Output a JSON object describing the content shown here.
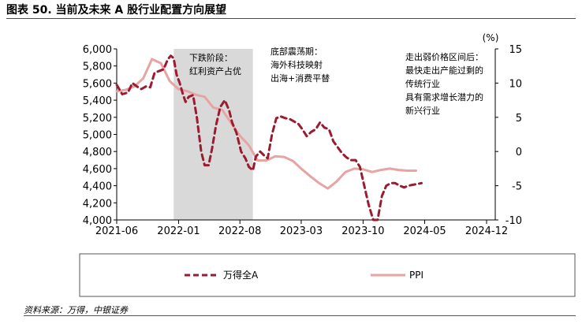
{
  "header": {
    "title": "图表 50. 当前及未来 A 股行业配置方向展望"
  },
  "footer": {
    "source": "资料来源：万得，中银证券"
  },
  "chart_data": {
    "type": "line",
    "title": "",
    "x_tick_labels": [
      "2021-06",
      "2022-01",
      "2022-08",
      "2023-03",
      "2023-10",
      "2024-05",
      "2024-12"
    ],
    "x_range": [
      "2021-06-01",
      "2024-12-31"
    ],
    "y_left": {
      "label": "",
      "ylim": [
        4000,
        6000
      ],
      "ticks": [
        "6,000",
        "5,800",
        "5,600",
        "5,400",
        "5,200",
        "5,000",
        "4,800",
        "4,600",
        "4,400",
        "4,200",
        "4,000"
      ]
    },
    "y_right": {
      "label": "(%)",
      "ylim": [
        -10,
        15
      ],
      "ticks": [
        "15",
        "10",
        "5",
        "0",
        "-5",
        "-10"
      ]
    },
    "shaded_period": {
      "start": "2021-12-15",
      "end": "2022-09-15",
      "color": "#d9d9d9"
    },
    "annotations": [
      {
        "lines": [
          "下跌阶段：",
          "红利资产占优"
        ]
      },
      {
        "lines": [
          "底部震荡期：",
          "海外科技映射",
          "出海+消费平替"
        ]
      },
      {
        "lines": [
          "走出弱价格区间后：",
          "最快走出产能过剩的",
          "传统行业",
          "具有需求增长潜力的",
          "新兴行业"
        ]
      }
    ],
    "series": [
      {
        "name": "万得全A",
        "axis": "left",
        "style": "dashed",
        "color": "#9b1b30",
        "x": [
          "2021-06-01",
          "2021-06-20",
          "2021-07-10",
          "2021-07-25",
          "2021-08-10",
          "2021-08-25",
          "2021-09-10",
          "2021-09-25",
          "2021-10-10",
          "2021-10-25",
          "2021-11-10",
          "2021-11-25",
          "2021-12-05",
          "2021-12-15",
          "2021-12-25",
          "2022-01-05",
          "2022-01-15",
          "2022-01-25",
          "2022-02-05",
          "2022-02-20",
          "2022-03-05",
          "2022-03-20",
          "2022-04-01",
          "2022-04-15",
          "2022-04-27",
          "2022-05-10",
          "2022-05-25",
          "2022-06-10",
          "2022-06-25",
          "2022-07-05",
          "2022-07-20",
          "2022-08-05",
          "2022-08-20",
          "2022-09-01",
          "2022-09-15",
          "2022-09-25",
          "2022-10-10",
          "2022-10-25",
          "2022-11-05",
          "2022-11-20",
          "2022-12-05",
          "2022-12-20",
          "2023-01-05",
          "2023-01-20",
          "2023-02-05",
          "2023-02-20",
          "2023-03-05",
          "2023-03-20",
          "2023-04-05",
          "2023-04-20",
          "2023-05-05",
          "2023-05-20",
          "2023-06-05",
          "2023-06-20",
          "2023-07-05",
          "2023-07-20",
          "2023-08-05",
          "2023-08-20",
          "2023-09-05",
          "2023-09-20",
          "2023-10-05",
          "2023-10-20",
          "2023-11-05",
          "2023-11-20",
          "2023-12-05",
          "2023-12-20",
          "2024-01-05",
          "2024-01-20",
          "2024-02-05",
          "2024-02-20",
          "2024-03-05",
          "2024-03-20",
          "2024-04-05",
          "2024-04-20"
        ],
        "values": [
          5580,
          5470,
          5490,
          5600,
          5560,
          5530,
          5560,
          5550,
          5720,
          5740,
          5760,
          5880,
          5920,
          5890,
          5700,
          5600,
          5480,
          5380,
          5440,
          5460,
          5200,
          4800,
          4640,
          4640,
          4840,
          5100,
          5320,
          5400,
          5280,
          5140,
          5020,
          4800,
          4720,
          4620,
          4580,
          4740,
          4800,
          4750,
          4720,
          5000,
          5190,
          5210,
          5190,
          5180,
          5150,
          5120,
          5060,
          4980,
          5030,
          5060,
          5140,
          5080,
          5060,
          4920,
          4850,
          4780,
          4730,
          4700,
          4700,
          4620,
          4400,
          4180,
          4000,
          4000,
          4280,
          4400,
          4430,
          4430,
          4400,
          4380,
          4400,
          4410,
          4420,
          4430
        ]
      },
      {
        "name": "PPI",
        "axis": "right",
        "style": "solid",
        "color": "#e8a3a3",
        "x": [
          "2021-06-01",
          "2021-07-01",
          "2021-08-01",
          "2021-09-01",
          "2021-10-01",
          "2021-11-01",
          "2021-12-01",
          "2022-01-01",
          "2022-02-01",
          "2022-03-01",
          "2022-04-01",
          "2022-05-01",
          "2022-06-01",
          "2022-07-01",
          "2022-08-01",
          "2022-09-01",
          "2022-10-01",
          "2022-11-01",
          "2022-12-01",
          "2023-01-01",
          "2023-02-01",
          "2023-03-01",
          "2023-04-01",
          "2023-05-01",
          "2023-06-01",
          "2023-07-01",
          "2023-08-01",
          "2023-09-01",
          "2023-10-01",
          "2023-11-01",
          "2023-12-01",
          "2024-01-01",
          "2024-02-01",
          "2024-03-01",
          "2024-04-01"
        ],
        "values": [
          8.8,
          9.0,
          9.5,
          10.7,
          13.5,
          12.9,
          10.3,
          9.1,
          8.8,
          8.3,
          8.0,
          6.4,
          6.1,
          4.2,
          2.3,
          0.9,
          -1.3,
          -1.3,
          -0.7,
          -0.8,
          -1.4,
          -2.5,
          -3.6,
          -4.6,
          -5.4,
          -4.4,
          -3.0,
          -2.5,
          -2.6,
          -3.0,
          -2.7,
          -2.5,
          -2.7,
          -2.8,
          -2.8
        ]
      }
    ],
    "legend": {
      "position": "bottom",
      "entries": [
        "万得全A",
        "PPI"
      ]
    }
  }
}
